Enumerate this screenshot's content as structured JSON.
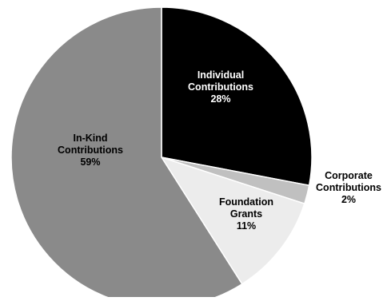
{
  "chart_data": {
    "type": "pie",
    "title": "",
    "slices": [
      {
        "name": "Individual Contributions",
        "label_lines": [
          "Individual",
          "Contributions"
        ],
        "value_label": "28%",
        "value": 28,
        "color": "#000000",
        "label_color": "#ffffff"
      },
      {
        "name": "Corporate Contributions",
        "label_lines": [
          "Corporate",
          "Contributions"
        ],
        "value_label": "2%",
        "value": 2,
        "color": "#c0c0c0",
        "label_color": "#000000"
      },
      {
        "name": "Foundation Grants",
        "label_lines": [
          "Foundation",
          "Grants"
        ],
        "value_label": "11%",
        "value": 11,
        "color": "#ececec",
        "label_color": "#000000"
      },
      {
        "name": "In-Kind Contributions",
        "label_lines": [
          "In-Kind",
          "Contributions"
        ],
        "value_label": "59%",
        "value": 59,
        "color": "#8a8a8a",
        "label_color": "#000000"
      }
    ],
    "start_angle_deg": 0,
    "direction": "clockwise",
    "slice_border_color": "#ffffff",
    "legend": "none"
  }
}
